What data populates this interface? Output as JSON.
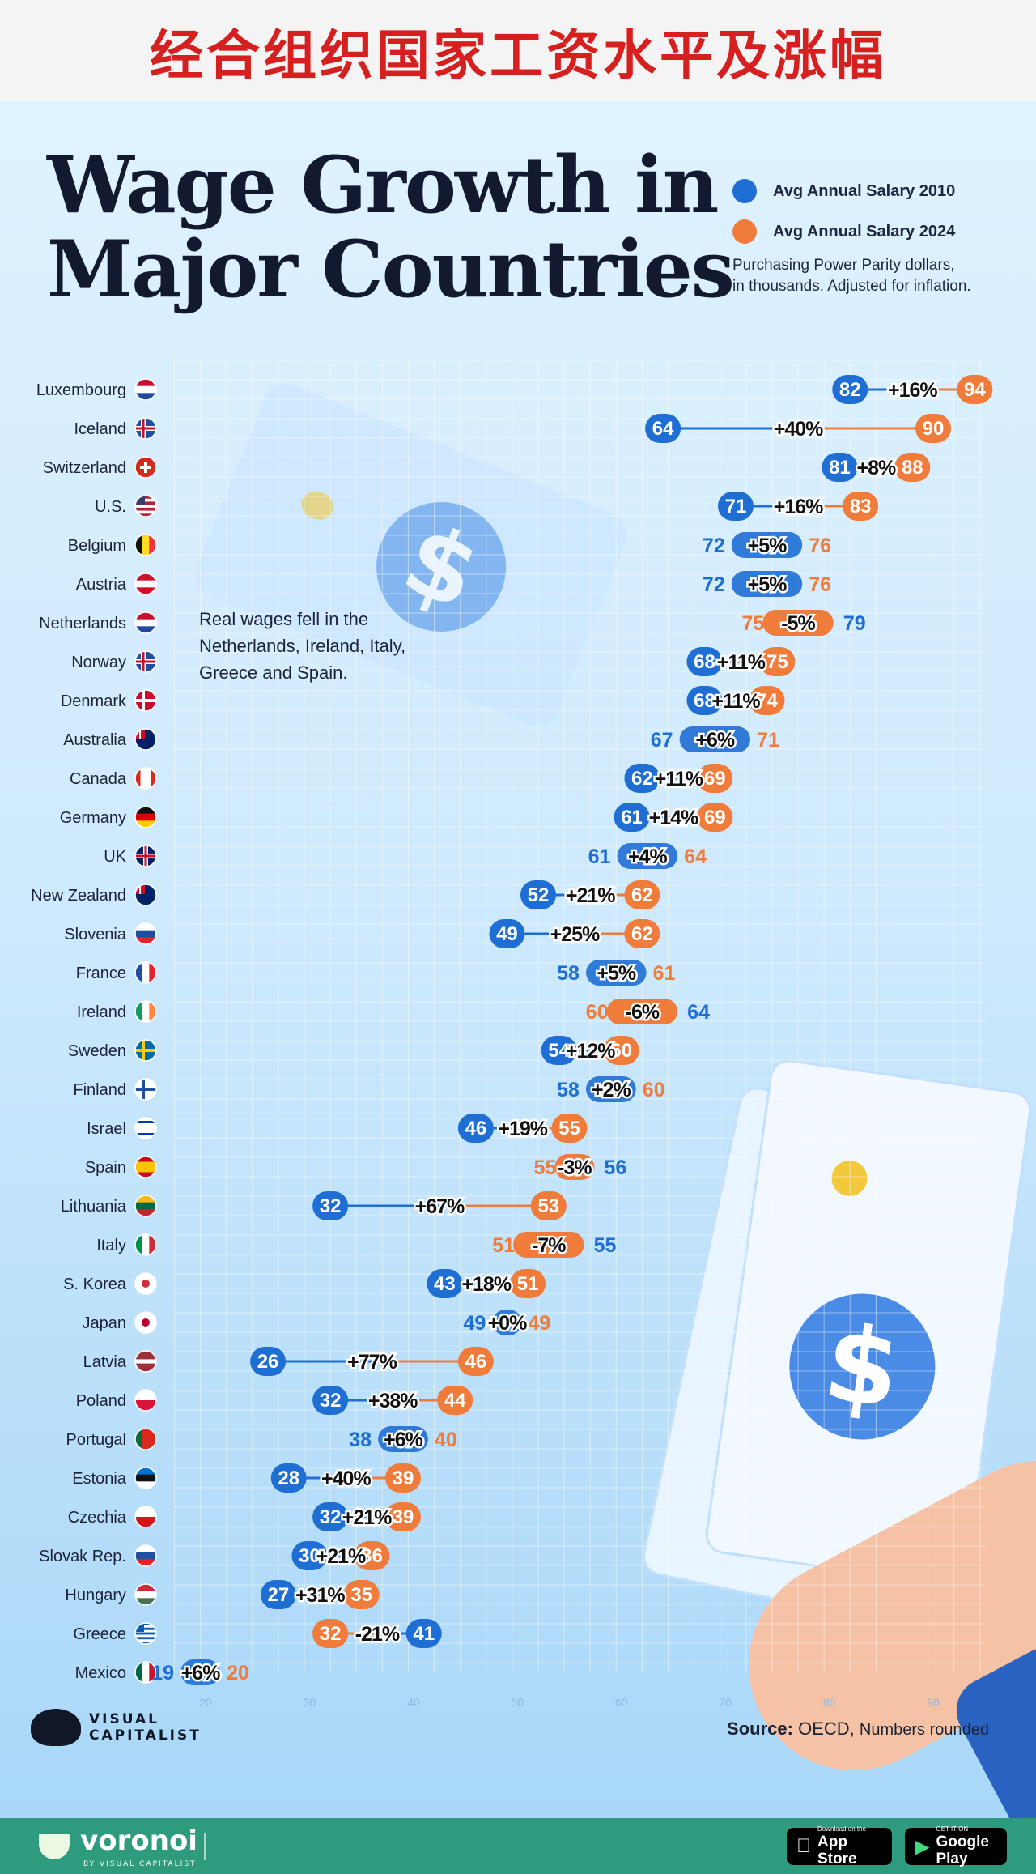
{
  "banner": {
    "title": "经合组织国家工资水平及涨幅"
  },
  "header": {
    "title_line1": "Wage Growth in",
    "title_line2": "Major Countries"
  },
  "legend": {
    "item1": "Avg Annual Salary 2010",
    "item2": "Avg Annual Salary 2024",
    "note_line1": "Purchasing Power Parity dollars,",
    "note_line2": "in thousands. Adjusted for inflation."
  },
  "annotation": {
    "line1": "Real wages fell in the",
    "line2": "Netherlands, Ireland, Italy,",
    "line3": "Greece and Spain."
  },
  "colors": {
    "blue": "#1f6ed4",
    "orange": "#f07c3c",
    "dark": "#131a30"
  },
  "chart_data": {
    "type": "dumbbell",
    "series": [
      {
        "name": "Avg Annual Salary 2010",
        "color": "#1f6ed4"
      },
      {
        "name": "Avg Annual Salary 2024",
        "color": "#f07c3c"
      }
    ],
    "xlim": [
      17,
      95
    ],
    "xticks": [
      "20",
      "30",
      "40",
      "50",
      "60",
      "70",
      "80",
      "90"
    ],
    "rows": [
      {
        "country": "Luxembourg",
        "v2010": 82,
        "v2024": 94,
        "change": "+16%",
        "flag": "nl"
      },
      {
        "country": "Iceland",
        "v2010": 64,
        "v2024": 90,
        "change": "+40%",
        "flag": "nordic-red"
      },
      {
        "country": "Switzerland",
        "v2010": 81,
        "v2024": 88,
        "change": "+8%",
        "flag": "ch"
      },
      {
        "country": "U.S.",
        "v2010": 71,
        "v2024": 83,
        "change": "+16%",
        "flag": "us"
      },
      {
        "country": "Belgium",
        "v2010": 72,
        "v2024": 76,
        "change": "+5%",
        "flag": "be"
      },
      {
        "country": "Austria",
        "v2010": 72,
        "v2024": 76,
        "change": "+5%",
        "flag": "at"
      },
      {
        "country": "Netherlands",
        "v2010": 79,
        "v2024": 75,
        "change": "-5%",
        "flag": "nl"
      },
      {
        "country": "Norway",
        "v2010": 68,
        "v2024": 75,
        "change": "+11%",
        "flag": "nordic-red"
      },
      {
        "country": "Denmark",
        "v2010": 68,
        "v2024": 74,
        "change": "+11%",
        "flag": "dk"
      },
      {
        "country": "Australia",
        "v2010": 67,
        "v2024": 71,
        "change": "+6%",
        "flag": "au"
      },
      {
        "country": "Canada",
        "v2010": 62,
        "v2024": 69,
        "change": "+11%",
        "flag": "ca"
      },
      {
        "country": "Germany",
        "v2010": 61,
        "v2024": 69,
        "change": "+14%",
        "flag": "de"
      },
      {
        "country": "UK",
        "v2010": 61,
        "v2024": 64,
        "change": "+4%",
        "flag": "uk"
      },
      {
        "country": "New Zealand",
        "v2010": 52,
        "v2024": 62,
        "change": "+21%",
        "flag": "au"
      },
      {
        "country": "Slovenia",
        "v2010": 49,
        "v2024": 62,
        "change": "+25%",
        "flag": "si"
      },
      {
        "country": "France",
        "v2010": 58,
        "v2024": 61,
        "change": "+5%",
        "flag": "fr"
      },
      {
        "country": "Ireland",
        "v2010": 64,
        "v2024": 60,
        "change": "-6%",
        "flag": "ie"
      },
      {
        "country": "Sweden",
        "v2010": 54,
        "v2024": 60,
        "change": "+12%",
        "flag": "se"
      },
      {
        "country": "Finland",
        "v2010": 58,
        "v2024": 60,
        "change": "+2%",
        "flag": "fi"
      },
      {
        "country": "Israel",
        "v2010": 46,
        "v2024": 55,
        "change": "+19%",
        "flag": "il"
      },
      {
        "country": "Spain",
        "v2010": 56,
        "v2024": 55,
        "change": "-3%",
        "flag": "es"
      },
      {
        "country": "Lithuania",
        "v2010": 32,
        "v2024": 53,
        "change": "+67%",
        "flag": "lt"
      },
      {
        "country": "Italy",
        "v2010": 55,
        "v2024": 51,
        "change": "-7%",
        "flag": "it"
      },
      {
        "country": "S. Korea",
        "v2010": 43,
        "v2024": 51,
        "change": "+18%",
        "flag": "kr"
      },
      {
        "country": "Japan",
        "v2010": 49,
        "v2024": 49,
        "change": "+0%",
        "flag": "jp"
      },
      {
        "country": "Latvia",
        "v2010": 26,
        "v2024": 46,
        "change": "+77%",
        "flag": "lv"
      },
      {
        "country": "Poland",
        "v2010": 32,
        "v2024": 44,
        "change": "+38%",
        "flag": "pl"
      },
      {
        "country": "Portugal",
        "v2010": 38,
        "v2024": 40,
        "change": "+6%",
        "flag": "pt"
      },
      {
        "country": "Estonia",
        "v2010": 28,
        "v2024": 39,
        "change": "+40%",
        "flag": "ee"
      },
      {
        "country": "Czechia",
        "v2010": 32,
        "v2024": 39,
        "change": "+21%",
        "flag": "cz"
      },
      {
        "country": "Slovak Rep.",
        "v2010": 30,
        "v2024": 36,
        "change": "+21%",
        "flag": "sk"
      },
      {
        "country": "Hungary",
        "v2010": 27,
        "v2024": 35,
        "change": "+31%",
        "flag": "hu"
      },
      {
        "country": "Greece",
        "v2010": 41,
        "v2024": 32,
        "change": "-21%",
        "flag": "gr"
      },
      {
        "country": "Mexico",
        "v2010": 19,
        "v2024": 20,
        "change": "+6%",
        "flag": "mx"
      }
    ]
  },
  "brand": {
    "line1": "VISUAL",
    "line2": "CAPITALIST"
  },
  "source": {
    "label": "Source:",
    "org": "OECD,",
    "note": "Numbers rounded"
  },
  "footer": {
    "brand": "voronoi",
    "by": "BY VISUAL CAPITALIST",
    "appstore_small": "Download on the",
    "appstore_big": "App Store",
    "googleplay_small": "GET IT ON",
    "googleplay_big": "Google Play"
  }
}
